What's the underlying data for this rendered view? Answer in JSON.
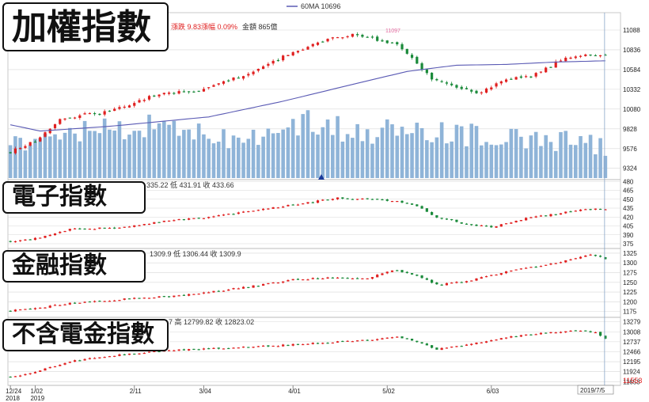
{
  "legend": {
    "ma_label": "60MA 10696",
    "ma_color": "#5a5ab4"
  },
  "main_info": {
    "change": "漲跌 9.83",
    "pct": "漲幅 0.09%",
    "amount": "金額 865億",
    "peak_label": "11097"
  },
  "panel_info": {
    "electronics": "335.22 低 431.91 收 433.66",
    "finance": "1309.9 低 1306.44 收 1309.9",
    "ex_elec_fin": "7 高 12799.82 收 12823.02"
  },
  "titles": {
    "taiex": "加權指數",
    "electronics": "電子指數",
    "finance": "金融指數",
    "ex_elec_fin": "不含電金指數"
  },
  "x_axis": {
    "ticks": [
      {
        "label": "12/24",
        "sub": "2018",
        "i": 0
      },
      {
        "label": "1/02",
        "sub": "2019",
        "i": 5
      },
      {
        "label": "2/11",
        "sub": "",
        "i": 25
      },
      {
        "label": "3/04",
        "sub": "",
        "i": 39
      },
      {
        "label": "4/01",
        "sub": "",
        "i": 57
      },
      {
        "label": "5/02",
        "sub": "",
        "i": 76
      },
      {
        "label": "6/03",
        "sub": "",
        "i": 97
      },
      {
        "label": "7/0",
        "sub": "",
        "i": 116
      }
    ],
    "cursor_date": "2019/7/5",
    "cursor_value": "11553"
  },
  "colors": {
    "up": "#e02020",
    "down": "#1a8a3a",
    "volume": "#8fb4d8",
    "grid": "#d8d8d8",
    "cursor_value": "#e02020"
  },
  "chart_data": [
    {
      "type": "candlestick",
      "name": "加權指數",
      "yticks": [
        11088,
        10836,
        10584,
        10332,
        10080,
        9828,
        9576,
        9324
      ],
      "ylim": [
        9180,
        11310
      ],
      "close_anchors": [
        [
          0,
          9530
        ],
        [
          6,
          9700
        ],
        [
          10,
          9960
        ],
        [
          20,
          10050
        ],
        [
          30,
          10280
        ],
        [
          38,
          10320
        ],
        [
          44,
          10440
        ],
        [
          50,
          10580
        ],
        [
          56,
          10780
        ],
        [
          63,
          10960
        ],
        [
          69,
          11040
        ],
        [
          73,
          10980
        ],
        [
          78,
          10900
        ],
        [
          80,
          10790
        ],
        [
          85,
          10460
        ],
        [
          90,
          10360
        ],
        [
          94,
          10280
        ],
        [
          100,
          10450
        ],
        [
          106,
          10520
        ],
        [
          112,
          10750
        ],
        [
          117,
          10770
        ],
        [
          120,
          10780
        ]
      ],
      "ma_anchors": [
        [
          0,
          9880
        ],
        [
          6,
          9800
        ],
        [
          20,
          9860
        ],
        [
          40,
          9980
        ],
        [
          55,
          10180
        ],
        [
          70,
          10410
        ],
        [
          80,
          10560
        ],
        [
          90,
          10640
        ],
        [
          100,
          10650
        ],
        [
          110,
          10680
        ],
        [
          120,
          10696
        ]
      ],
      "volume_anchors": [
        [
          0,
          0.45
        ],
        [
          8,
          0.6
        ],
        [
          20,
          0.7
        ],
        [
          30,
          0.72
        ],
        [
          40,
          0.58
        ],
        [
          55,
          0.58
        ],
        [
          60,
          0.78
        ],
        [
          70,
          0.62
        ],
        [
          76,
          0.66
        ],
        [
          85,
          0.6
        ],
        [
          95,
          0.58
        ],
        [
          105,
          0.52
        ],
        [
          120,
          0.45
        ]
      ]
    },
    {
      "type": "candlestick",
      "name": "電子指數",
      "yticks": [
        480,
        465,
        450,
        435,
        420,
        405,
        390,
        375
      ],
      "ylim": [
        367,
        483
      ],
      "close_anchors": [
        [
          0,
          378
        ],
        [
          6,
          385
        ],
        [
          12,
          400
        ],
        [
          22,
          402
        ],
        [
          30,
          412
        ],
        [
          40,
          420
        ],
        [
          50,
          432
        ],
        [
          58,
          442
        ],
        [
          66,
          452
        ],
        [
          73,
          450
        ],
        [
          78,
          446
        ],
        [
          82,
          438
        ],
        [
          86,
          420
        ],
        [
          92,
          408
        ],
        [
          97,
          403
        ],
        [
          104,
          418
        ],
        [
          110,
          425
        ],
        [
          116,
          434
        ],
        [
          120,
          433.66
        ]
      ]
    },
    {
      "type": "candlestick",
      "name": "金融指數",
      "yticks": [
        1325,
        1300,
        1275,
        1250,
        1225,
        1200,
        1175
      ],
      "ylim": [
        1160,
        1337
      ],
      "close_anchors": [
        [
          0,
          1178
        ],
        [
          6,
          1185
        ],
        [
          12,
          1196
        ],
        [
          22,
          1206
        ],
        [
          32,
          1214
        ],
        [
          42,
          1228
        ],
        [
          52,
          1246
        ],
        [
          56,
          1256
        ],
        [
          64,
          1262
        ],
        [
          72,
          1260
        ],
        [
          77,
          1282
        ],
        [
          82,
          1268
        ],
        [
          86,
          1244
        ],
        [
          92,
          1252
        ],
        [
          100,
          1278
        ],
        [
          108,
          1294
        ],
        [
          114,
          1312
        ],
        [
          117,
          1322
        ],
        [
          120,
          1309.9
        ]
      ]
    },
    {
      "type": "candlestick",
      "name": "不含電金指數",
      "yticks": [
        13279,
        13008,
        12737,
        12466,
        12195,
        11924,
        11653
      ],
      "ylim": [
        11553,
        13400
      ],
      "close_anchors": [
        [
          0,
          11780
        ],
        [
          6,
          11950
        ],
        [
          12,
          12210
        ],
        [
          22,
          12380
        ],
        [
          32,
          12500
        ],
        [
          42,
          12560
        ],
        [
          52,
          12620
        ],
        [
          62,
          12700
        ],
        [
          72,
          12780
        ],
        [
          78,
          12870
        ],
        [
          82,
          12740
        ],
        [
          86,
          12540
        ],
        [
          92,
          12660
        ],
        [
          100,
          12860
        ],
        [
          108,
          12980
        ],
        [
          114,
          13050
        ],
        [
          118,
          12990
        ],
        [
          120,
          12823
        ]
      ]
    }
  ]
}
